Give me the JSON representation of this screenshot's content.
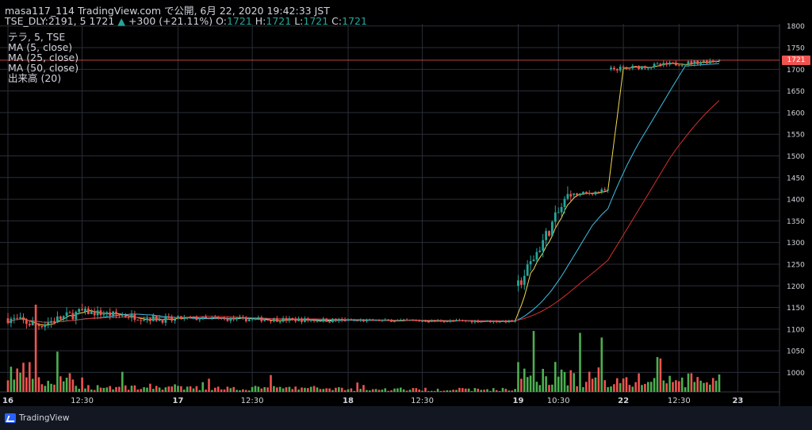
{
  "header": {
    "line1": "masa117_114 TradingView.com で公開, 6月 22, 2020 19:42:33 JST",
    "symbol": "TSE_DLY:2191, 5 1721",
    "change_icon": "triangle-up-icon",
    "change": "+300 (+21.11%)",
    "o_label": "O:",
    "o_value": "1721",
    "h_label": "H:",
    "h_value": "1721",
    "l_label": "L:",
    "l_value": "1721",
    "c_label": "C:",
    "c_value": "1721"
  },
  "indicators": [
    "テラ, 5, TSE",
    "MA (5, close)",
    "MA (25, close)",
    "MA (50, close)",
    "出来高 (20)"
  ],
  "last_price_label": "1721",
  "footer": {
    "logo_text": "TradingView"
  },
  "colors": {
    "background": "#000000",
    "up": "#26a69a",
    "down": "#ef5350",
    "ma5": "#f5d84e",
    "ma25": "#3ec1e8",
    "ma50": "#d32f2f",
    "vol_up": "#4caf50",
    "vol_down": "#ef5350",
    "grid": "#2a2e39",
    "axis_text": "#d1d4dc"
  },
  "chart_data": {
    "type": "candlestick",
    "y_ticks": [
      1000,
      1050,
      1100,
      1150,
      1200,
      1250,
      1300,
      1350,
      1400,
      1450,
      1500,
      1550,
      1600,
      1650,
      1700,
      1750,
      1800
    ],
    "ylim": [
      955,
      1805
    ],
    "x_ticks": [
      {
        "index": 0,
        "label": "16"
      },
      {
        "index": 24,
        "label": "12:30"
      },
      {
        "index": 55,
        "label": "17"
      },
      {
        "index": 79,
        "label": "12:30"
      },
      {
        "index": 110,
        "label": "18"
      },
      {
        "index": 134,
        "label": "12:30"
      },
      {
        "index": 165,
        "label": "19"
      },
      {
        "index": 178,
        "label": "10:30"
      },
      {
        "index": 199,
        "label": "22"
      },
      {
        "index": 217,
        "label": "12:30"
      },
      {
        "index": 236,
        "label": "23"
      }
    ],
    "last_price": 1721,
    "segments": [
      {
        "count": 10,
        "from": 1125,
        "to": 1110,
        "noise": 22,
        "vol": 30
      },
      {
        "count": 15,
        "from": 1110,
        "to": 1140,
        "noise": 22,
        "vol": 15
      },
      {
        "count": 30,
        "from": 1140,
        "to": 1120,
        "noise": 16,
        "vol": 8
      },
      {
        "count": 55,
        "from": 1125,
        "to": 1120,
        "noise": 10,
        "vol": 6
      },
      {
        "count": 55,
        "from": 1120,
        "to": 1118,
        "noise": 6,
        "vol": 4
      },
      {
        "count": 18,
        "from": 1200,
        "to": 1420,
        "noise": 30,
        "vol": 30
      },
      {
        "count": 12,
        "from": 1410,
        "to": 1420,
        "noise": 10,
        "vol": 20
      },
      {
        "count": 36,
        "from": 1700,
        "to": 1721,
        "noise": 10,
        "vol": 18
      }
    ],
    "ma_series": [
      {
        "name": "MA (5, close)",
        "period": 5
      },
      {
        "name": "MA (25, close)",
        "period": 25
      },
      {
        "name": "MA (50, close)",
        "period": 50
      }
    ],
    "volume_study": "出来高 (20)"
  }
}
